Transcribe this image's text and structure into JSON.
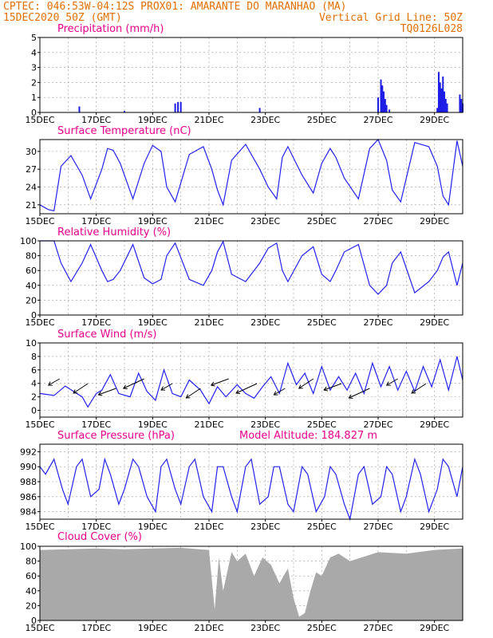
{
  "header": {
    "line1": "CPTEC:  046:53W-04:12S  PROX01: AMARANTE DO MARANHAO (MA)",
    "line2_left": "15DEC2020 50Z (GMT)",
    "line2_right": "Vertical Grid Line: 50Z",
    "line3_right": "TQ0126L028"
  },
  "x_tick_labels": [
    "15DEC",
    "17DEC",
    "19DEC",
    "21DEC",
    "23DEC",
    "25DEC",
    "27DEC",
    "29DEC"
  ],
  "colors": {
    "header": "#e07000",
    "title": "#e8008a",
    "series": "#2222ee",
    "cloud": "#a9a9a9"
  },
  "chart_data": [
    {
      "type": "bar",
      "title": "Precipitation (mm/h)",
      "ylim": [
        0,
        5
      ],
      "yticks": [
        "0",
        "1",
        "2",
        "3",
        "4",
        "5"
      ],
      "xlim": [
        0,
        15
      ],
      "x": [
        1.4,
        3.0,
        4.8,
        4.9,
        5.0,
        7.8,
        12.0,
        12.1,
        12.15,
        12.2,
        12.25,
        12.3,
        12.4,
        14.1,
        14.15,
        14.2,
        14.25,
        14.3,
        14.35,
        14.4,
        14.45,
        14.9,
        14.95,
        15.0
      ],
      "values": [
        0.4,
        0.1,
        0.6,
        0.7,
        0.7,
        0.3,
        1.0,
        2.2,
        1.8,
        1.4,
        0.9,
        0.5,
        0.2,
        0.3,
        2.7,
        2.0,
        1.6,
        2.4,
        1.4,
        0.9,
        0.6,
        1.2,
        0.9,
        0.6
      ]
    },
    {
      "type": "line",
      "title": "Surface Temperature (nC)",
      "ylim": [
        19.5,
        32.0
      ],
      "yticks": [
        "21",
        "24",
        "27",
        "30"
      ],
      "xlim": [
        0,
        15
      ],
      "x": [
        0,
        0.3,
        0.5,
        0.75,
        1.1,
        1.5,
        1.8,
        2.2,
        2.4,
        2.6,
        2.85,
        3.3,
        3.7,
        4.0,
        4.3,
        4.5,
        4.8,
        5.3,
        5.8,
        6.1,
        6.3,
        6.5,
        6.8,
        7.3,
        7.8,
        8.1,
        8.4,
        8.6,
        8.8,
        9.3,
        9.7,
        10.0,
        10.3,
        10.5,
        10.8,
        11.3,
        11.7,
        12.0,
        12.3,
        12.5,
        12.8,
        13.3,
        13.8,
        14.1,
        14.3,
        14.5,
        14.8,
        15.0
      ],
      "values": [
        21.0,
        20.2,
        20.0,
        27.5,
        29.3,
        26.0,
        22.0,
        27.0,
        30.5,
        30.2,
        28.0,
        22.0,
        28.0,
        31.0,
        30.0,
        24.0,
        21.5,
        29.5,
        30.8,
        27.0,
        23.5,
        21.0,
        28.5,
        31.2,
        27.0,
        24.0,
        22.0,
        29.0,
        30.8,
        26.0,
        23.0,
        28.0,
        30.5,
        29.0,
        25.5,
        22.0,
        30.5,
        32.0,
        28.5,
        23.5,
        21.5,
        31.5,
        30.8,
        27.5,
        22.5,
        21.0,
        31.8,
        27.5
      ]
    },
    {
      "type": "line",
      "title": "Relative Humidity (%)",
      "ylim": [
        0,
        100
      ],
      "yticks": [
        "0",
        "20",
        "40",
        "60",
        "80",
        "100"
      ],
      "xlim": [
        0,
        15
      ],
      "x": [
        0,
        0.5,
        0.75,
        1.1,
        1.5,
        1.8,
        2.2,
        2.4,
        2.6,
        2.85,
        3.3,
        3.7,
        4.0,
        4.3,
        4.5,
        4.8,
        5.3,
        5.8,
        6.1,
        6.3,
        6.5,
        6.8,
        7.3,
        7.8,
        8.1,
        8.4,
        8.6,
        8.8,
        9.3,
        9.7,
        10.0,
        10.3,
        10.5,
        10.8,
        11.3,
        11.7,
        12.0,
        12.3,
        12.5,
        12.8,
        13.3,
        13.8,
        14.1,
        14.3,
        14.5,
        14.8,
        15.0
      ],
      "values": [
        100,
        100,
        70,
        45,
        70,
        95,
        60,
        45,
        48,
        60,
        95,
        50,
        42,
        48,
        80,
        97,
        48,
        40,
        60,
        85,
        99,
        55,
        45,
        70,
        90,
        97,
        60,
        45,
        80,
        92,
        55,
        45,
        60,
        85,
        95,
        40,
        28,
        40,
        70,
        85,
        30,
        45,
        60,
        78,
        85,
        40,
        70
      ]
    },
    {
      "type": "line",
      "title": "Surface Wind (m/s)",
      "ylim": [
        -1,
        10
      ],
      "yticks": [
        "0",
        "2",
        "4",
        "6",
        "8",
        "10"
      ],
      "xlim": [
        0,
        15
      ],
      "x": [
        0,
        0.5,
        0.9,
        1.2,
        1.5,
        1.7,
        2.0,
        2.2,
        2.5,
        2.8,
        3.2,
        3.5,
        3.8,
        4.1,
        4.4,
        4.7,
        5.0,
        5.3,
        5.7,
        6.0,
        6.3,
        6.6,
        7.0,
        7.3,
        7.6,
        7.9,
        8.2,
        8.5,
        8.8,
        9.1,
        9.4,
        9.7,
        10.0,
        10.3,
        10.6,
        10.9,
        11.2,
        11.5,
        11.8,
        12.1,
        12.4,
        12.7,
        13.0,
        13.3,
        13.6,
        13.9,
        14.2,
        14.5,
        14.8,
        15.0
      ],
      "values": [
        2.5,
        2.2,
        3.6,
        2.8,
        2.0,
        0.5,
        2.5,
        3.0,
        5.3,
        2.5,
        2.0,
        5.5,
        2.8,
        1.5,
        6.0,
        2.5,
        2.0,
        4.5,
        3.0,
        1.0,
        3.5,
        2.0,
        3.8,
        2.5,
        1.8,
        3.5,
        5.0,
        2.5,
        7.0,
        3.8,
        5.5,
        2.5,
        6.5,
        3.0,
        5.0,
        3.0,
        5.5,
        2.5,
        7.0,
        3.5,
        6.5,
        3.0,
        5.8,
        2.8,
        6.5,
        3.5,
        7.5,
        3.0,
        8.0,
        4.5
      ]
    },
    {
      "type": "line",
      "title": "Surface Pressure (hPa)",
      "annotation": "Model Altitude: 184.827  m",
      "ylim": [
        983.0,
        993.0
      ],
      "yticks": [
        "984",
        "986",
        "988",
        "990",
        "992"
      ],
      "xlim": [
        0,
        15
      ],
      "x": [
        0,
        0.2,
        0.5,
        0.8,
        1.0,
        1.3,
        1.5,
        1.8,
        2.1,
        2.3,
        2.5,
        2.8,
        3.0,
        3.3,
        3.5,
        3.8,
        4.1,
        4.3,
        4.5,
        4.8,
        5.0,
        5.3,
        5.5,
        5.8,
        6.1,
        6.3,
        6.5,
        6.8,
        7.0,
        7.3,
        7.5,
        7.8,
        8.1,
        8.3,
        8.5,
        8.8,
        9.0,
        9.3,
        9.5,
        9.8,
        10.1,
        10.3,
        10.5,
        10.8,
        11.0,
        11.3,
        11.5,
        11.8,
        12.1,
        12.3,
        12.5,
        12.8,
        13.0,
        13.3,
        13.5,
        13.8,
        14.1,
        14.3,
        14.5,
        14.8,
        15.0
      ],
      "values": [
        990,
        989,
        991,
        987,
        985,
        990,
        991,
        986,
        987,
        991,
        989,
        985,
        987,
        991,
        990,
        986,
        984,
        990,
        991,
        987,
        985,
        990,
        991,
        986,
        984,
        990,
        990,
        986,
        984,
        990,
        991,
        985,
        986,
        990,
        990,
        985,
        984,
        990,
        989,
        984,
        986,
        990,
        989,
        985,
        983,
        989,
        990,
        985,
        986,
        990,
        989,
        984,
        986,
        991,
        989,
        984,
        987,
        991,
        990,
        986,
        990
      ]
    },
    {
      "type": "area",
      "title": "Cloud Cover (%)",
      "ylim": [
        0,
        100
      ],
      "yticks": [
        "0",
        "20",
        "40",
        "60",
        "80",
        "100"
      ],
      "xlim": [
        0,
        15
      ],
      "x": [
        0,
        1,
        2,
        3,
        4,
        5,
        6,
        6.2,
        6.35,
        6.5,
        6.8,
        7.0,
        7.3,
        7.6,
        7.9,
        8.2,
        8.5,
        8.8,
        9.0,
        9.2,
        9.4,
        9.6,
        9.8,
        10.0,
        10.3,
        10.6,
        11.0,
        12.0,
        13.0,
        14.0,
        15.0
      ],
      "values": [
        95,
        96,
        97,
        96,
        97,
        98,
        95,
        15,
        85,
        40,
        92,
        80,
        90,
        60,
        85,
        75,
        50,
        70,
        30,
        5,
        10,
        40,
        65,
        60,
        85,
        90,
        80,
        92,
        90,
        95,
        97
      ]
    }
  ]
}
